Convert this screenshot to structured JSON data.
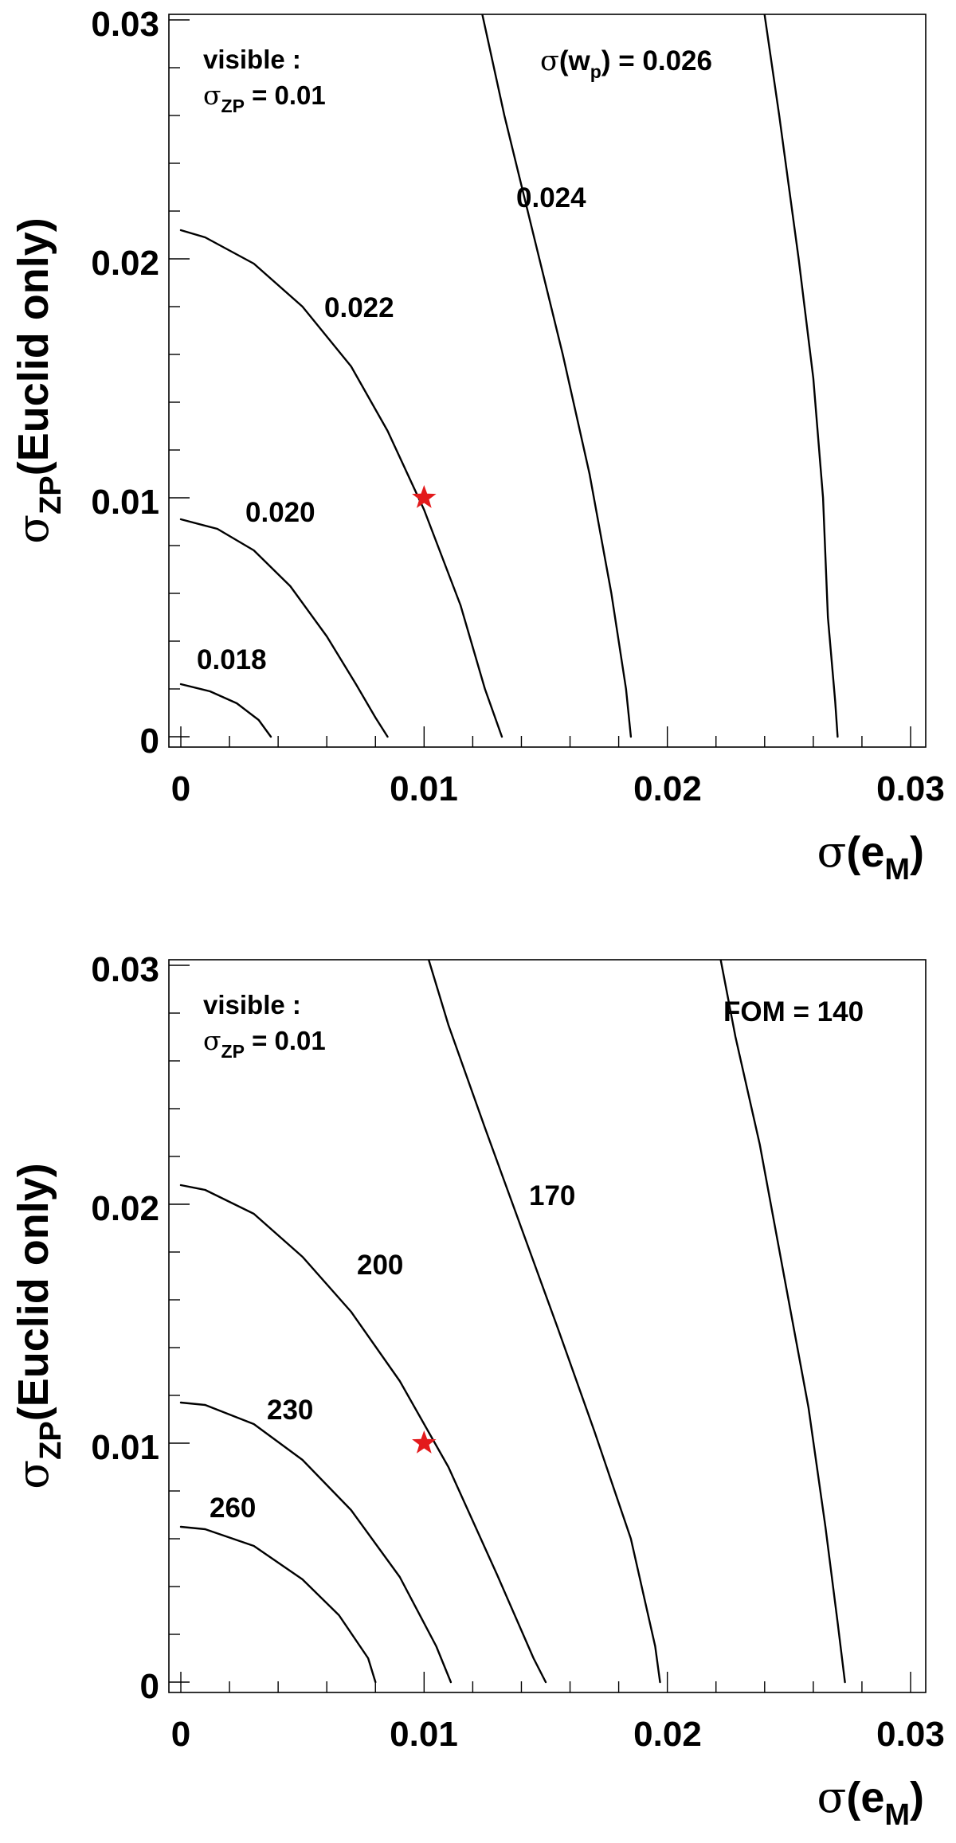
{
  "chart_data": [
    {
      "type": "line",
      "subtype": "contour",
      "xlim": [
        0,
        0.03
      ],
      "ylim": [
        0,
        0.03
      ],
      "x_tick_labels": [
        "0",
        "0.01",
        "0.02",
        "0.03"
      ],
      "y_tick_labels": [
        "0",
        "0.01",
        "0.02",
        "0.03"
      ],
      "xlabel": {
        "sym": "σ",
        "open": "(",
        "base": "e",
        "sub": "M",
        "close": ")"
      },
      "ylabel": {
        "sym": "σ",
        "sub": "ZP",
        "text": "(Euclid only)"
      },
      "annotation": {
        "line1": "visible :",
        "sym": "σ",
        "sub": "ZP",
        "rest": " = 0.01"
      },
      "series": [
        {
          "name": "0.018",
          "x": [
            0,
            0.0012,
            0.0023,
            0.0032,
            0.0037
          ],
          "y": [
            0.0022,
            0.0019,
            0.0014,
            0.0007,
            0
          ]
        },
        {
          "name": "0.020",
          "x": [
            0,
            0.0015,
            0.003,
            0.0045,
            0.006,
            0.0072,
            0.008,
            0.0085
          ],
          "y": [
            0.0091,
            0.0087,
            0.0078,
            0.0063,
            0.0042,
            0.0022,
            0.0008,
            0
          ]
        },
        {
          "name": "0.022",
          "x": [
            0,
            0.001,
            0.003,
            0.005,
            0.007,
            0.0085,
            0.01,
            0.0115,
            0.0125,
            0.0132
          ],
          "y": [
            0.0212,
            0.0209,
            0.0198,
            0.018,
            0.0155,
            0.0128,
            0.0095,
            0.0055,
            0.002,
            0
          ]
        },
        {
          "name": "0.024",
          "x": [
            0.0124,
            0.0133,
            0.0145,
            0.0157,
            0.0168,
            0.0177,
            0.0183,
            0.0185
          ],
          "y": [
            0.0302,
            0.026,
            0.021,
            0.016,
            0.011,
            0.006,
            0.002,
            0
          ]
        },
        {
          "prefix_sym": "σ",
          "prefix_open": "(w",
          "prefix_sub": "p",
          "prefix_close": ") = ",
          "name": "0.026",
          "x": [
            0.024,
            0.0246,
            0.0254,
            0.026,
            0.0264,
            0.0266,
            0.0269,
            0.027
          ],
          "y": [
            0.0302,
            0.026,
            0.02,
            0.015,
            0.01,
            0.005,
            0.0015,
            0
          ]
        }
      ],
      "markers": [
        {
          "x": 0.01,
          "y": 0.01,
          "color": "#e31a1c",
          "symbol": "star"
        }
      ]
    },
    {
      "type": "line",
      "subtype": "contour",
      "xlim": [
        0,
        0.03
      ],
      "ylim": [
        0,
        0.03
      ],
      "x_tick_labels": [
        "0",
        "0.01",
        "0.02",
        "0.03"
      ],
      "y_tick_labels": [
        "0",
        "0.01",
        "0.02",
        "0.03"
      ],
      "xlabel": {
        "sym": "σ",
        "open": "(",
        "base": "e",
        "sub": "M",
        "close": ")"
      },
      "ylabel": {
        "sym": "σ",
        "sub": "ZP",
        "text": "(Euclid only)"
      },
      "annotation": {
        "line1": "visible :",
        "sym": "σ",
        "sub": "ZP",
        "rest": " = 0.01"
      },
      "series": [
        {
          "name": "260",
          "x": [
            0,
            0.001,
            0.003,
            0.005,
            0.0065,
            0.0077,
            0.008
          ],
          "y": [
            0.0065,
            0.0064,
            0.0057,
            0.0043,
            0.0028,
            0.001,
            0
          ]
        },
        {
          "name": "230",
          "x": [
            0,
            0.001,
            0.003,
            0.005,
            0.007,
            0.009,
            0.0105,
            0.0111
          ],
          "y": [
            0.0117,
            0.0116,
            0.0108,
            0.0093,
            0.0072,
            0.0044,
            0.0015,
            0
          ]
        },
        {
          "name": "200",
          "x": [
            0,
            0.001,
            0.003,
            0.005,
            0.007,
            0.009,
            0.011,
            0.013,
            0.0145,
            0.015
          ],
          "y": [
            0.0208,
            0.0206,
            0.0196,
            0.0178,
            0.0155,
            0.0126,
            0.009,
            0.0045,
            0.001,
            0
          ]
        },
        {
          "name": "170",
          "x": [
            0.0102,
            0.011,
            0.0125,
            0.014,
            0.0155,
            0.017,
            0.0185,
            0.0195,
            0.0197
          ],
          "y": [
            0.0302,
            0.0275,
            0.0232,
            0.019,
            0.0148,
            0.0105,
            0.006,
            0.0015,
            0
          ]
        },
        {
          "prefix": "FOM = ",
          "name": "140",
          "x": [
            0.0222,
            0.0228,
            0.0238,
            0.0248,
            0.0258,
            0.0265,
            0.027,
            0.0273
          ],
          "y": [
            0.0302,
            0.027,
            0.0225,
            0.017,
            0.0115,
            0.0065,
            0.0025,
            0
          ]
        }
      ],
      "markers": [
        {
          "x": 0.01,
          "y": 0.01,
          "color": "#e31a1c",
          "symbol": "star"
        }
      ]
    }
  ]
}
